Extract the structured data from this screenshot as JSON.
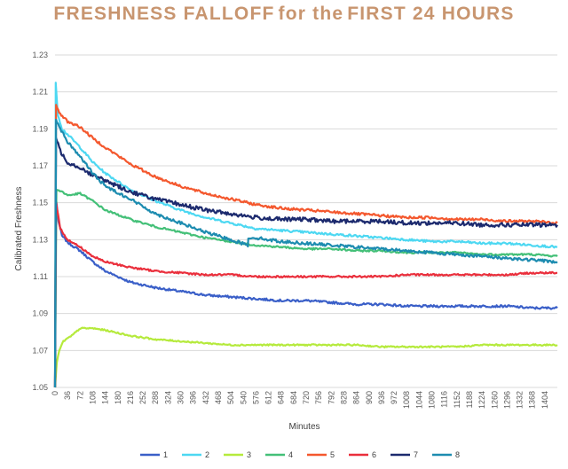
{
  "title": {
    "part1": "FRESHNESS FALLOFF",
    "part2": "for the",
    "part3": "FIRST 24 HOURS"
  },
  "chart_data": {
    "type": "line",
    "xlabel": "Minutes",
    "ylabel": "Calibrated Freshness",
    "ylim": [
      1.05,
      1.23
    ],
    "yticks": [
      "1.05",
      "1.07",
      "1.09",
      "1.11",
      "1.13",
      "1.15",
      "1.17",
      "1.19",
      "1.21",
      "1.23"
    ],
    "xlim": [
      0,
      1440
    ],
    "xticks": [
      0,
      36,
      72,
      108,
      144,
      180,
      216,
      252,
      288,
      324,
      360,
      396,
      432,
      468,
      504,
      540,
      576,
      612,
      648,
      684,
      720,
      756,
      792,
      828,
      864,
      900,
      936,
      972,
      1008,
      1044,
      1080,
      1116,
      1152,
      1188,
      1224,
      1260,
      1296,
      1332,
      1368,
      1404
    ],
    "grid": "horizontal",
    "legend_position": "bottom",
    "series": [
      {
        "name": "1",
        "color": "#3a5fc8",
        "noise": 0.0006,
        "points": [
          [
            0,
            1.05
          ],
          [
            3,
            1.152
          ],
          [
            10,
            1.14
          ],
          [
            20,
            1.132
          ],
          [
            40,
            1.128
          ],
          [
            72,
            1.124
          ],
          [
            108,
            1.118
          ],
          [
            144,
            1.113
          ],
          [
            216,
            1.107
          ],
          [
            288,
            1.104
          ],
          [
            360,
            1.102
          ],
          [
            432,
            1.1
          ],
          [
            504,
            1.099
          ],
          [
            576,
            1.098
          ],
          [
            648,
            1.097
          ],
          [
            720,
            1.097
          ],
          [
            792,
            1.096
          ],
          [
            864,
            1.095
          ],
          [
            936,
            1.095
          ],
          [
            1008,
            1.094
          ],
          [
            1080,
            1.094
          ],
          [
            1152,
            1.094
          ],
          [
            1224,
            1.094
          ],
          [
            1296,
            1.094
          ],
          [
            1368,
            1.093
          ],
          [
            1440,
            1.093
          ]
        ]
      },
      {
        "name": "2",
        "color": "#4dd8f2",
        "noise": 0.0006,
        "points": [
          [
            0,
            1.05
          ],
          [
            2,
            1.215
          ],
          [
            8,
            1.198
          ],
          [
            20,
            1.19
          ],
          [
            36,
            1.187
          ],
          [
            72,
            1.18
          ],
          [
            108,
            1.172
          ],
          [
            144,
            1.166
          ],
          [
            216,
            1.157
          ],
          [
            288,
            1.151
          ],
          [
            360,
            1.146
          ],
          [
            432,
            1.142
          ],
          [
            504,
            1.139
          ],
          [
            576,
            1.136
          ],
          [
            648,
            1.135
          ],
          [
            720,
            1.134
          ],
          [
            792,
            1.133
          ],
          [
            864,
            1.132
          ],
          [
            936,
            1.131
          ],
          [
            1008,
            1.13
          ],
          [
            1080,
            1.129
          ],
          [
            1152,
            1.129
          ],
          [
            1224,
            1.128
          ],
          [
            1296,
            1.128
          ],
          [
            1368,
            1.127
          ],
          [
            1440,
            1.126
          ]
        ]
      },
      {
        "name": "3",
        "color": "#b5ea3c",
        "noise": 0.0004,
        "points": [
          [
            0,
            1.05
          ],
          [
            5,
            1.063
          ],
          [
            12,
            1.07
          ],
          [
            24,
            1.075
          ],
          [
            48,
            1.078
          ],
          [
            72,
            1.082
          ],
          [
            108,
            1.082
          ],
          [
            144,
            1.081
          ],
          [
            216,
            1.078
          ],
          [
            288,
            1.076
          ],
          [
            360,
            1.075
          ],
          [
            432,
            1.074
          ],
          [
            504,
            1.073
          ],
          [
            576,
            1.073
          ],
          [
            648,
            1.073
          ],
          [
            720,
            1.073
          ],
          [
            792,
            1.073
          ],
          [
            864,
            1.073
          ],
          [
            936,
            1.072
          ],
          [
            1008,
            1.072
          ],
          [
            1080,
            1.072
          ],
          [
            1152,
            1.072
          ],
          [
            1224,
            1.073
          ],
          [
            1296,
            1.073
          ],
          [
            1368,
            1.073
          ],
          [
            1440,
            1.073
          ]
        ]
      },
      {
        "name": "4",
        "color": "#44c078",
        "noise": 0.0005,
        "points": [
          [
            0,
            1.05
          ],
          [
            4,
            1.157
          ],
          [
            20,
            1.156
          ],
          [
            36,
            1.154
          ],
          [
            72,
            1.155
          ],
          [
            108,
            1.151
          ],
          [
            144,
            1.146
          ],
          [
            216,
            1.141
          ],
          [
            288,
            1.137
          ],
          [
            360,
            1.134
          ],
          [
            432,
            1.131
          ],
          [
            504,
            1.129
          ],
          [
            576,
            1.127
          ],
          [
            648,
            1.126
          ],
          [
            720,
            1.125
          ],
          [
            792,
            1.125
          ],
          [
            864,
            1.124
          ],
          [
            936,
            1.124
          ],
          [
            1008,
            1.123
          ],
          [
            1080,
            1.123
          ],
          [
            1152,
            1.123
          ],
          [
            1224,
            1.122
          ],
          [
            1296,
            1.122
          ],
          [
            1368,
            1.122
          ],
          [
            1440,
            1.121
          ]
        ]
      },
      {
        "name": "5",
        "color": "#f4582e",
        "noise": 0.0007,
        "points": [
          [
            0,
            1.05
          ],
          [
            3,
            1.203
          ],
          [
            15,
            1.198
          ],
          [
            36,
            1.194
          ],
          [
            72,
            1.191
          ],
          [
            108,
            1.185
          ],
          [
            144,
            1.18
          ],
          [
            216,
            1.171
          ],
          [
            288,
            1.164
          ],
          [
            360,
            1.159
          ],
          [
            432,
            1.155
          ],
          [
            504,
            1.152
          ],
          [
            576,
            1.149
          ],
          [
            648,
            1.147
          ],
          [
            720,
            1.146
          ],
          [
            792,
            1.145
          ],
          [
            864,
            1.144
          ],
          [
            936,
            1.143
          ],
          [
            1008,
            1.142
          ],
          [
            1080,
            1.142
          ],
          [
            1152,
            1.141
          ],
          [
            1224,
            1.141
          ],
          [
            1296,
            1.14
          ],
          [
            1368,
            1.14
          ],
          [
            1440,
            1.139
          ]
        ]
      },
      {
        "name": "6",
        "color": "#ea2f3c",
        "noise": 0.0005,
        "points": [
          [
            0,
            1.05
          ],
          [
            3,
            1.15
          ],
          [
            15,
            1.136
          ],
          [
            36,
            1.13
          ],
          [
            72,
            1.126
          ],
          [
            108,
            1.121
          ],
          [
            144,
            1.118
          ],
          [
            216,
            1.115
          ],
          [
            288,
            1.113
          ],
          [
            360,
            1.112
          ],
          [
            432,
            1.111
          ],
          [
            504,
            1.111
          ],
          [
            576,
            1.11
          ],
          [
            648,
            1.11
          ],
          [
            720,
            1.11
          ],
          [
            792,
            1.11
          ],
          [
            864,
            1.11
          ],
          [
            936,
            1.11
          ],
          [
            1008,
            1.111
          ],
          [
            1080,
            1.111
          ],
          [
            1152,
            1.111
          ],
          [
            1224,
            1.111
          ],
          [
            1296,
            1.111
          ],
          [
            1368,
            1.112
          ],
          [
            1440,
            1.112
          ]
        ]
      },
      {
        "name": "7",
        "color": "#1c2a6e",
        "noise": 0.0011,
        "points": [
          [
            0,
            1.05
          ],
          [
            3,
            1.185
          ],
          [
            15,
            1.178
          ],
          [
            36,
            1.172
          ],
          [
            72,
            1.169
          ],
          [
            108,
            1.165
          ],
          [
            144,
            1.162
          ],
          [
            216,
            1.156
          ],
          [
            288,
            1.152
          ],
          [
            360,
            1.149
          ],
          [
            432,
            1.146
          ],
          [
            504,
            1.144
          ],
          [
            576,
            1.142
          ],
          [
            648,
            1.141
          ],
          [
            720,
            1.141
          ],
          [
            792,
            1.14
          ],
          [
            864,
            1.14
          ],
          [
            936,
            1.14
          ],
          [
            1008,
            1.139
          ],
          [
            1080,
            1.139
          ],
          [
            1152,
            1.139
          ],
          [
            1224,
            1.138
          ],
          [
            1296,
            1.138
          ],
          [
            1368,
            1.138
          ],
          [
            1440,
            1.138
          ]
        ]
      },
      {
        "name": "8",
        "color": "#1d8cb0",
        "noise": 0.0008,
        "points": [
          [
            0,
            1.05
          ],
          [
            3,
            1.195
          ],
          [
            15,
            1.19
          ],
          [
            36,
            1.183
          ],
          [
            72,
            1.175
          ],
          [
            108,
            1.166
          ],
          [
            144,
            1.159
          ],
          [
            216,
            1.152
          ],
          [
            288,
            1.144
          ],
          [
            360,
            1.139
          ],
          [
            432,
            1.134
          ],
          [
            504,
            1.13
          ],
          [
            553,
            1.127
          ],
          [
            554,
            1.131
          ],
          [
            576,
            1.131
          ],
          [
            648,
            1.129
          ],
          [
            720,
            1.128
          ],
          [
            792,
            1.127
          ],
          [
            864,
            1.126
          ],
          [
            936,
            1.125
          ],
          [
            1008,
            1.124
          ],
          [
            1080,
            1.123
          ],
          [
            1152,
            1.122
          ],
          [
            1224,
            1.121
          ],
          [
            1296,
            1.12
          ],
          [
            1368,
            1.119
          ],
          [
            1440,
            1.118
          ]
        ]
      }
    ]
  }
}
